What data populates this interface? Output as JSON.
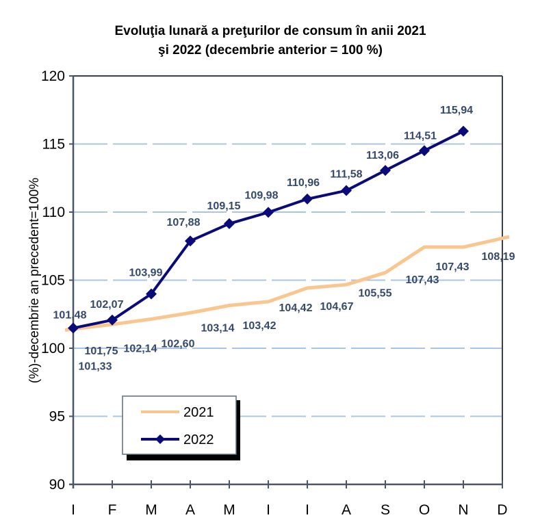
{
  "chart_data": {
    "type": "line",
    "title": "Evoluţia lunară a preţurilor de consum în anii  2021",
    "title_line2": "şi 2022 (decembrie anterior = 100 %)",
    "xlabel": "",
    "ylabel": "(%)-decembrie an precedent=100%",
    "categories": [
      "I",
      "F",
      "M",
      "A",
      "M",
      "I",
      "I",
      "A",
      "S",
      "O",
      "N",
      "D"
    ],
    "ylim": [
      90,
      120
    ],
    "yticks": [
      90,
      95,
      100,
      105,
      110,
      115,
      120
    ],
    "grid": true,
    "legend_position": "lower-left",
    "series": [
      {
        "name": "2021",
        "color": "#f9c690",
        "marker": "none",
        "values": [
          101.33,
          101.75,
          102.14,
          102.6,
          103.14,
          103.42,
          104.42,
          104.67,
          105.55,
          107.43,
          107.43,
          108.19
        ],
        "labels": [
          "101,33",
          "101,75",
          "102,14",
          "102,60",
          "103,14",
          "103,42",
          "104,42",
          "104,67",
          "105,55",
          "107,43",
          "107,43",
          "108,19"
        ]
      },
      {
        "name": "2022",
        "color": "#0a0a78",
        "marker": "diamond",
        "values": [
          101.48,
          102.07,
          103.99,
          107.88,
          109.15,
          109.98,
          110.96,
          111.58,
          113.06,
          114.51,
          115.94
        ],
        "labels": [
          "101,48",
          "102,07",
          "103,99",
          "107,88",
          "109,15",
          "109,98",
          "110,96",
          "111,58",
          "113,06",
          "114,51",
          "115,94"
        ]
      }
    ]
  }
}
